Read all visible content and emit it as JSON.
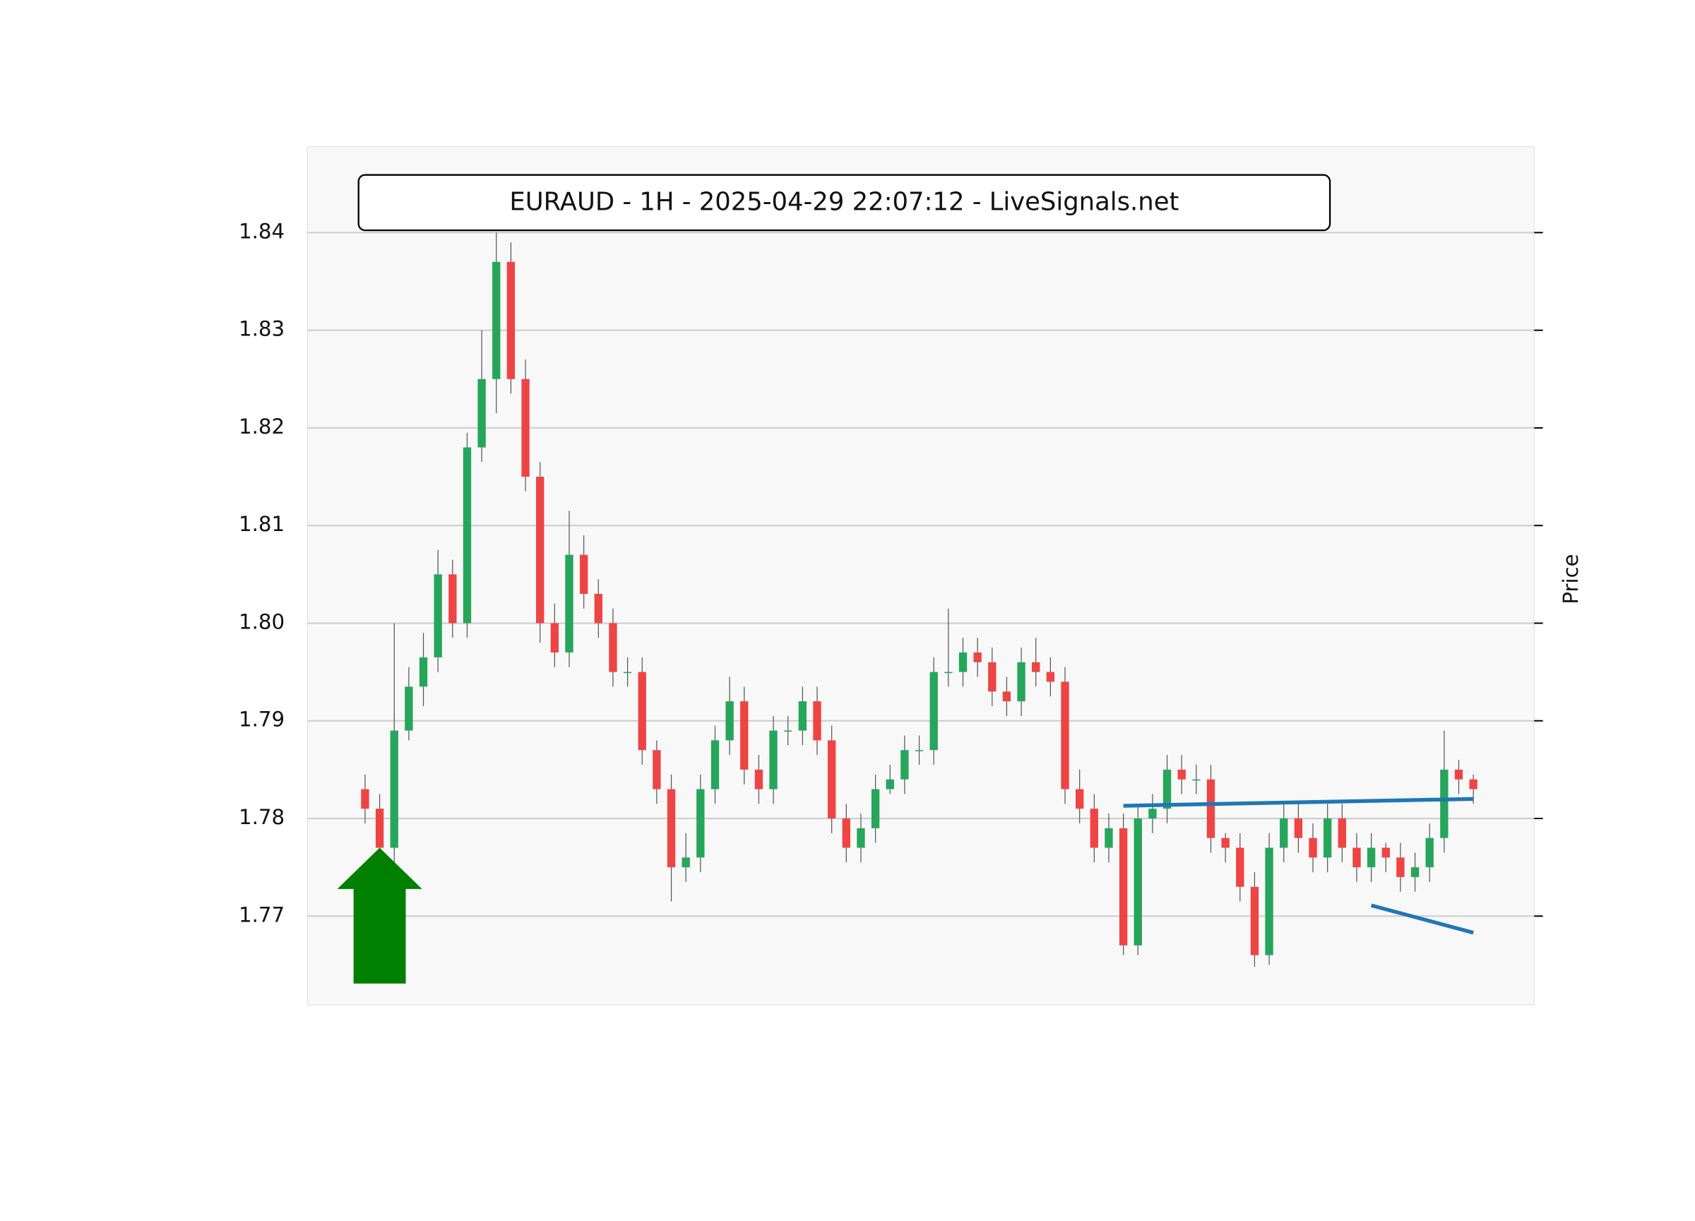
{
  "chart_data": {
    "type": "candlestick",
    "title": "EURAUD - 1H - 2025-04-29 22:07:12 - LiveSignals.net",
    "y_label": "Price",
    "open": [
      1.783,
      1.781,
      1.777,
      1.789,
      1.7935,
      1.7965,
      1.805,
      1.8,
      1.818,
      1.825,
      1.837,
      1.825,
      1.815,
      1.8,
      1.797,
      1.807,
      1.803,
      1.8,
      1.795,
      1.795,
      1.787,
      1.783,
      1.775,
      1.776,
      1.783,
      1.788,
      1.792,
      1.785,
      1.783,
      1.789,
      1.789,
      1.792,
      1.788,
      1.78,
      1.777,
      1.779,
      1.783,
      1.784,
      1.787,
      1.787,
      1.795,
      1.795,
      1.797,
      1.796,
      1.793,
      1.792,
      1.796,
      1.795,
      1.794,
      1.783,
      1.781,
      1.777,
      1.779,
      1.767,
      1.78,
      1.781,
      1.785,
      1.784,
      1.784,
      1.778,
      1.777,
      1.773,
      1.766,
      1.777,
      1.78,
      1.778,
      1.776,
      1.78,
      1.777,
      1.775,
      1.777,
      1.776,
      1.774,
      1.775,
      1.778,
      1.785,
      1.784
    ],
    "high": [
      1.7845,
      1.7825,
      1.8,
      1.7955,
      1.799,
      1.8075,
      1.8065,
      1.8195,
      1.83,
      1.84,
      1.839,
      1.827,
      1.8165,
      1.802,
      1.8115,
      1.809,
      1.8045,
      1.8015,
      1.7965,
      1.7965,
      1.788,
      1.7845,
      1.7785,
      1.7845,
      1.7895,
      1.7945,
      1.7935,
      1.7865,
      1.7905,
      1.7905,
      1.7935,
      1.7935,
      1.7895,
      1.7815,
      1.7805,
      1.7845,
      1.7855,
      1.7885,
      1.7885,
      1.7965,
      1.8015,
      1.7985,
      1.7985,
      1.7975,
      1.7945,
      1.7975,
      1.7985,
      1.7965,
      1.7955,
      1.785,
      1.7825,
      1.7805,
      1.7805,
      1.7815,
      1.7825,
      1.7865,
      1.7865,
      1.7855,
      1.7855,
      1.7785,
      1.7785,
      1.7745,
      1.7785,
      1.7815,
      1.7815,
      1.7795,
      1.7815,
      1.7815,
      1.7785,
      1.7785,
      1.7775,
      1.7775,
      1.7765,
      1.7795,
      1.789,
      1.786,
      1.7845
    ],
    "low": [
      1.7795,
      1.7755,
      1.7755,
      1.788,
      1.7915,
      1.795,
      1.7985,
      1.7985,
      1.8165,
      1.8215,
      1.8235,
      1.8135,
      1.798,
      1.7955,
      1.7955,
      1.8015,
      1.7985,
      1.7935,
      1.7935,
      1.7855,
      1.7815,
      1.7715,
      1.7735,
      1.7745,
      1.7815,
      1.7865,
      1.7835,
      1.7815,
      1.7815,
      1.7875,
      1.7875,
      1.7865,
      1.7785,
      1.7755,
      1.7755,
      1.7775,
      1.7825,
      1.7825,
      1.7855,
      1.7855,
      1.7935,
      1.7935,
      1.7945,
      1.7915,
      1.7905,
      1.7905,
      1.7935,
      1.7925,
      1.7815,
      1.7795,
      1.7755,
      1.7755,
      1.766,
      1.766,
      1.7785,
      1.7795,
      1.7825,
      1.7825,
      1.7765,
      1.7755,
      1.7715,
      1.7648,
      1.765,
      1.7755,
      1.7765,
      1.7745,
      1.7745,
      1.7755,
      1.7735,
      1.7735,
      1.7745,
      1.7725,
      1.7725,
      1.7735,
      1.7765,
      1.7825,
      1.7815
    ],
    "close": [
      1.781,
      1.777,
      1.789,
      1.7935,
      1.7965,
      1.805,
      1.8,
      1.818,
      1.825,
      1.837,
      1.825,
      1.815,
      1.8,
      1.797,
      1.807,
      1.803,
      1.8,
      1.795,
      1.795,
      1.787,
      1.783,
      1.775,
      1.776,
      1.783,
      1.788,
      1.792,
      1.785,
      1.783,
      1.789,
      1.789,
      1.792,
      1.788,
      1.78,
      1.777,
      1.779,
      1.783,
      1.784,
      1.787,
      1.787,
      1.795,
      1.795,
      1.797,
      1.796,
      1.793,
      1.792,
      1.796,
      1.795,
      1.794,
      1.783,
      1.781,
      1.777,
      1.779,
      1.767,
      1.78,
      1.781,
      1.785,
      1.784,
      1.784,
      1.778,
      1.777,
      1.773,
      1.766,
      1.777,
      1.78,
      1.778,
      1.776,
      1.78,
      1.777,
      1.775,
      1.777,
      1.776,
      1.774,
      1.775,
      1.778,
      1.785,
      1.784,
      1.783
    ],
    "up_color": "#26a65b",
    "down_color": "#ef4444",
    "wick_color": "#555555",
    "ylim": [
      1.7609,
      1.8488
    ],
    "yticks": [
      1.77,
      1.78,
      1.79,
      {
        "value": 1.8,
        "label": "1.80"
      },
      1.81,
      1.82,
      1.83,
      1.84
    ],
    "grid": true,
    "trendlines": [
      {
        "x": [
          52,
          76
        ],
        "y": [
          1.7813,
          1.782
        ],
        "color": "#1f77b4"
      },
      {
        "x": [
          69,
          76
        ],
        "y": [
          1.7711,
          1.7683
        ],
        "color": "#1f77b4"
      }
    ],
    "signal": {
      "direction": "buy",
      "index": 1,
      "price": 1.777,
      "color": "#008000"
    }
  }
}
